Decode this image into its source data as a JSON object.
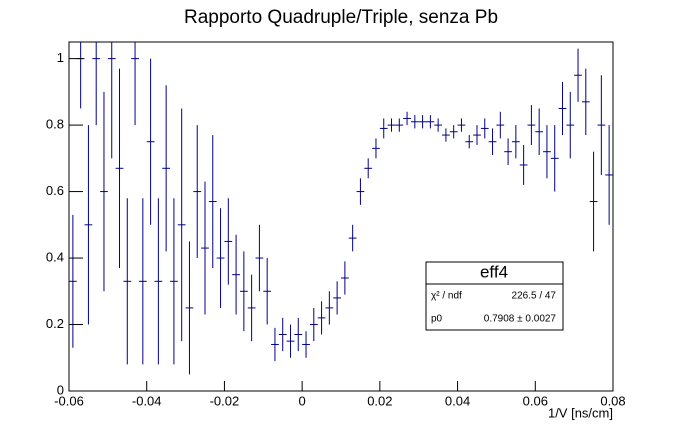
{
  "chart_data": {
    "type": "errorbar",
    "title": "Rapporto Quadruple/Triple, senza Pb",
    "x_label": "1/V [ns/cm]",
    "xlim": [
      -0.06,
      0.08
    ],
    "ylim": [
      0,
      1.05
    ],
    "xticks": [
      -0.06,
      -0.04,
      -0.02,
      0,
      0.02,
      0.04,
      0.06,
      0.08
    ],
    "yticks": [
      0,
      0.2,
      0.4,
      0.6,
      0.8,
      1
    ],
    "series": [
      {
        "color": "#00008b",
        "xerr": 0.001,
        "x": [
          -0.059,
          -0.057,
          -0.055,
          -0.053,
          -0.051,
          -0.049,
          -0.047,
          -0.045,
          -0.043,
          -0.041,
          -0.039,
          -0.037,
          -0.035,
          -0.033,
          -0.031,
          -0.029,
          -0.027,
          -0.025,
          -0.023,
          -0.021,
          -0.019,
          -0.017,
          -0.015,
          -0.013,
          -0.011,
          -0.009,
          -0.007,
          -0.005,
          -0.003,
          -0.001,
          0.001,
          0.003,
          0.005,
          0.007,
          0.009,
          0.011,
          0.013,
          0.015,
          0.017,
          0.019,
          0.021,
          0.023,
          0.025,
          0.027,
          0.029,
          0.031,
          0.033,
          0.035,
          0.037,
          0.039,
          0.041,
          0.043,
          0.045,
          0.047,
          0.049,
          0.051,
          0.053,
          0.055,
          0.057,
          0.059,
          0.061,
          0.063,
          0.065,
          0.067,
          0.069,
          0.071,
          0.073,
          0.075,
          0.077,
          0.079
        ],
        "values": [
          0.33,
          1.0,
          0.5,
          1.0,
          0.6,
          1.0,
          0.67,
          0.33,
          1.0,
          0.33,
          0.75,
          0.33,
          0.67,
          0.33,
          0.5,
          0.25,
          0.6,
          0.43,
          0.57,
          0.4,
          0.45,
          0.35,
          0.3,
          0.25,
          0.4,
          0.3,
          0.14,
          0.17,
          0.15,
          0.17,
          0.14,
          0.2,
          0.22,
          0.25,
          0.28,
          0.34,
          0.46,
          0.6,
          0.67,
          0.73,
          0.79,
          0.8,
          0.8,
          0.82,
          0.81,
          0.81,
          0.81,
          0.8,
          0.77,
          0.78,
          0.8,
          0.75,
          0.77,
          0.79,
          0.75,
          0.8,
          0.72,
          0.75,
          0.68,
          0.8,
          0.78,
          0.72,
          0.7,
          0.85,
          0.8,
          0.95,
          0.87,
          0.57,
          0.8,
          0.65
        ],
        "errors": [
          0.2,
          0.15,
          0.3,
          0.2,
          0.3,
          0.3,
          0.3,
          0.25,
          0.2,
          0.25,
          0.25,
          0.25,
          0.25,
          0.25,
          0.35,
          0.2,
          0.2,
          0.2,
          0.2,
          0.15,
          0.13,
          0.12,
          0.12,
          0.1,
          0.1,
          0.1,
          0.05,
          0.05,
          0.05,
          0.05,
          0.04,
          0.05,
          0.05,
          0.05,
          0.05,
          0.05,
          0.04,
          0.04,
          0.03,
          0.03,
          0.03,
          0.02,
          0.02,
          0.02,
          0.02,
          0.02,
          0.02,
          0.02,
          0.02,
          0.02,
          0.02,
          0.02,
          0.03,
          0.03,
          0.04,
          0.04,
          0.04,
          0.05,
          0.06,
          0.06,
          0.07,
          0.08,
          0.1,
          0.08,
          0.1,
          0.08,
          0.1,
          0.15,
          0.15,
          0.15
        ]
      }
    ],
    "stats": {
      "name": "eff4",
      "rows": [
        [
          "χ² / ndf",
          "226.5 / 47"
        ],
        [
          "p0",
          "0.7908 ± 0.0027"
        ]
      ]
    }
  }
}
